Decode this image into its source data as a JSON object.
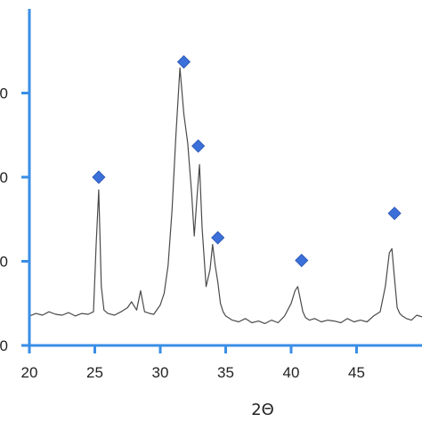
{
  "chart_data": {
    "type": "line",
    "title": "",
    "xlabel": "2Θ",
    "ylabel": "",
    "xlim": [
      20,
      50
    ],
    "ylim": [
      0,
      400
    ],
    "x_ticks": [
      20,
      25,
      30,
      35,
      40,
      45
    ],
    "x_tick_labels": [
      "20",
      "25",
      "30",
      "35",
      "40",
      "45"
    ],
    "y_ticks": [
      0,
      100,
      200,
      300
    ],
    "y_tick_labels": [
      "0",
      "0",
      "0",
      "0"
    ],
    "grid": false,
    "colors": {
      "axis": "#3a8ee6",
      "trace": "#4a4a4a",
      "marker": "#3b6fd9"
    },
    "series": [
      {
        "x": [
          20.0,
          20.5,
          21.0,
          21.5,
          22.0,
          22.5,
          23.0,
          23.5,
          24.0,
          24.5,
          24.9,
          25.1,
          25.3,
          25.5,
          25.7,
          26.0,
          26.5,
          27.0,
          27.5,
          27.8,
          28.2,
          28.5,
          28.8,
          29.2,
          29.5,
          30.0,
          30.3,
          30.6,
          30.9,
          31.2,
          31.5,
          31.8,
          32.1,
          32.4,
          32.6,
          32.8,
          33.0,
          33.2,
          33.5,
          33.8,
          34.0,
          34.2,
          34.4,
          34.6,
          34.8,
          35.0,
          35.5,
          36.0,
          36.5,
          37.0,
          37.5,
          38.0,
          38.5,
          39.0,
          39.5,
          40.0,
          40.3,
          40.5,
          40.7,
          40.9,
          41.1,
          41.4,
          41.8,
          42.3,
          42.8,
          43.3,
          43.8,
          44.3,
          44.8,
          45.3,
          45.8,
          46.3,
          46.8,
          47.2,
          47.5,
          47.7,
          47.9,
          48.1,
          48.3,
          48.5,
          48.8,
          49.2,
          49.6,
          50.0
        ],
        "y": [
          35,
          38,
          36,
          40,
          37,
          36,
          39,
          35,
          38,
          37,
          40,
          120,
          185,
          70,
          42,
          38,
          36,
          40,
          45,
          52,
          42,
          65,
          40,
          38,
          37,
          48,
          62,
          95,
          160,
          250,
          330,
          275,
          240,
          180,
          130,
          175,
          215,
          140,
          70,
          90,
          120,
          95,
          75,
          50,
          40,
          35,
          30,
          28,
          32,
          27,
          29,
          26,
          30,
          27,
          35,
          50,
          65,
          70,
          55,
          40,
          33,
          30,
          32,
          28,
          30,
          29,
          27,
          32,
          28,
          30,
          28,
          35,
          40,
          70,
          110,
          115,
          80,
          45,
          38,
          35,
          32,
          30,
          36,
          34
        ]
      }
    ],
    "peaks": [
      {
        "x": 25.3,
        "y": 200
      },
      {
        "x": 31.8,
        "y": 337
      },
      {
        "x": 32.9,
        "y": 237
      },
      {
        "x": 34.4,
        "y": 128
      },
      {
        "x": 40.8,
        "y": 101
      },
      {
        "x": 47.9,
        "y": 157
      }
    ]
  }
}
